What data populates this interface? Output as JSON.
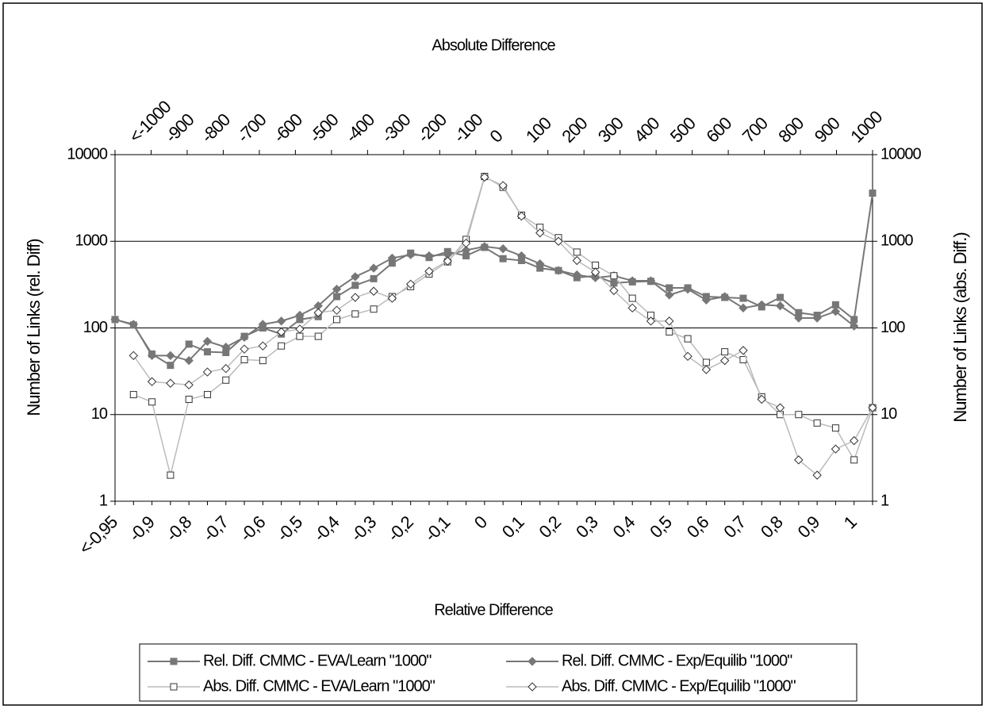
{
  "chart_data": {
    "type": "line",
    "title": "Absolute Difference",
    "x_label": "Relative Difference",
    "y_label": "Number of Links (rel. Diff)",
    "y2_label": "Number of Links (abs. Diff.)",
    "categories": [
      "<-0,95",
      null,
      "-0,9",
      null,
      "-0,8",
      null,
      "-0,7",
      null,
      "-0,6",
      null,
      "-0,5",
      null,
      "-0,4",
      null,
      "-0,3",
      null,
      "-0,2",
      null,
      "-0,1",
      null,
      "0",
      null,
      "0,1",
      null,
      "0,2",
      null,
      "0,3",
      null,
      "0,4",
      null,
      "0,5",
      null,
      "0,6",
      null,
      "0,7",
      null,
      "0,8",
      null,
      "0,9",
      null,
      "1",
      null
    ],
    "top_categories": [
      "<-1000",
      "-900",
      "-800",
      "-700",
      "-600",
      "-500",
      "-400",
      "-300",
      "-200",
      "-100",
      "0",
      "100",
      "200",
      "300",
      "400",
      "500",
      "600",
      "700",
      "800",
      "900",
      "1000"
    ],
    "log_scale": true,
    "grid": true,
    "ylim": [
      1,
      10000
    ],
    "yticks": [
      1,
      10,
      100,
      1000,
      10000
    ],
    "y2lim": [
      1,
      10000
    ],
    "y2ticks": [
      1,
      10,
      100,
      1000,
      10000
    ],
    "series": [
      {
        "name": "Rel. Diff. CMMC - EVA/Learn \"1000\"",
        "color": "#777777",
        "marker": "square",
        "filled": true,
        "axis": "y",
        "values": [
          125,
          108,
          50,
          37,
          65,
          53,
          52,
          80,
          100,
          85,
          125,
          135,
          230,
          310,
          370,
          560,
          730,
          650,
          760,
          680,
          850,
          630,
          600,
          490,
          460,
          380,
          400,
          330,
          340,
          345,
          290,
          290,
          230,
          225,
          220,
          175,
          225,
          150,
          140,
          185,
          125,
          3600
        ]
      },
      {
        "name": "Rel. Diff. CMMC - Exp/Equilib \"1000\"",
        "color": "#777777",
        "marker": "diamond",
        "filled": true,
        "axis": "y",
        "values": [
          125,
          110,
          48,
          48,
          42,
          70,
          60,
          78,
          110,
          120,
          140,
          180,
          280,
          390,
          490,
          640,
          700,
          680,
          700,
          790,
          870,
          820,
          680,
          550,
          460,
          410,
          380,
          400,
          350,
          350,
          240,
          280,
          210,
          230,
          170,
          185,
          180,
          130,
          130,
          155,
          105,
          null
        ]
      },
      {
        "name": "Abs. Diff. CMMC - EVA/Learn \"1000\"",
        "color": "#bbbbbb",
        "marker": "square",
        "filled": false,
        "axis": "y2",
        "values": [
          null,
          17,
          14,
          2,
          15,
          17,
          25,
          43,
          42,
          62,
          80,
          80,
          125,
          145,
          165,
          230,
          300,
          420,
          580,
          1050,
          5600,
          4200,
          2000,
          1450,
          1100,
          750,
          530,
          400,
          220,
          140,
          90,
          75,
          40,
          53,
          43,
          16,
          10,
          10,
          8,
          7,
          3,
          12
        ]
      },
      {
        "name": "Abs. Diff. CMMC - Exp/Equilib \"1000\"",
        "color": "#bbbbbb",
        "marker": "diamond",
        "filled": false,
        "axis": "y2",
        "values": [
          null,
          48,
          24,
          23,
          22,
          31,
          34,
          57,
          62,
          90,
          97,
          150,
          160,
          225,
          265,
          220,
          320,
          450,
          590,
          950,
          5500,
          4400,
          1950,
          1250,
          1000,
          600,
          440,
          270,
          170,
          120,
          120,
          47,
          33,
          42,
          55,
          15,
          12,
          3,
          2,
          4,
          5,
          12
        ]
      }
    ]
  }
}
